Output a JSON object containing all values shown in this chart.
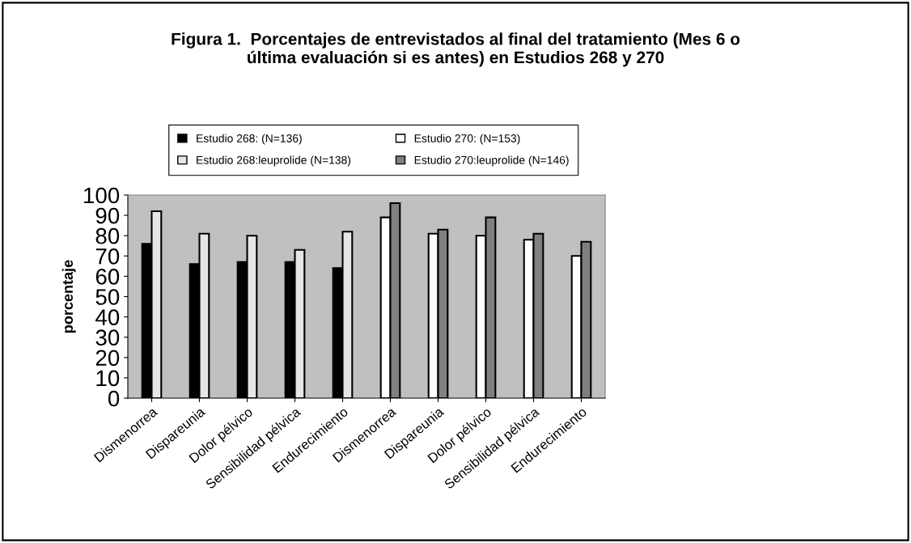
{
  "chart_data": {
    "type": "bar",
    "title": "Figura 1.  Porcentajes de entrevistados al final del tratamiento (Mes 6 o\núltima evaluación si es antes) en Estudios 268 y 270",
    "ylabel": "porcentaje",
    "categories": [
      "Dismenorrea",
      "Dispareunia",
      "Dolor pélvico",
      "Sensibilidad pélvica",
      "Endurecimiento",
      "Dismenorrea",
      "Dispareunia",
      "Dolor pélvico",
      "Sensibilidad pélvica",
      "Endurecimiento"
    ],
    "series": [
      {
        "name": "Estudio 268: (N=136)",
        "color": "#000000",
        "values": [
          76,
          66,
          67,
          67,
          64,
          null,
          null,
          null,
          null,
          null
        ]
      },
      {
        "name": "Estudio 268:leuprolide (N=138)",
        "color": "#e6e6e6",
        "values": [
          92,
          81,
          80,
          73,
          82,
          null,
          null,
          null,
          null,
          null
        ]
      },
      {
        "name": "Estudio 270: (N=153)",
        "color": "#ffffff",
        "values": [
          null,
          null,
          null,
          null,
          null,
          89,
          81,
          80,
          78,
          70
        ]
      },
      {
        "name": "Estudio 270:leuprolide (N=146)",
        "color": "#808080",
        "values": [
          null,
          null,
          null,
          null,
          null,
          96,
          83,
          89,
          81,
          77
        ]
      }
    ],
    "ylim": [
      0,
      100
    ],
    "yticks": [
      0,
      10,
      20,
      30,
      40,
      50,
      60,
      70,
      80,
      90,
      100
    ],
    "legend": "top",
    "grid": false
  }
}
